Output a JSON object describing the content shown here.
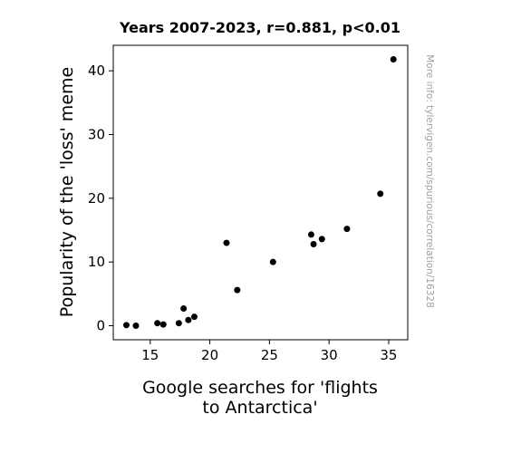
{
  "chart_data": {
    "type": "scatter",
    "title": "Years 2007-2023, r=0.881, p<0.01",
    "xlabel_lines": [
      "Google searches for 'flights",
      "to Antarctica'"
    ],
    "ylabel": "Popularity of the 'loss' meme",
    "watermark": "More info: tylervigen.com/spurious/correlation/16328",
    "xlim": [
      11.9,
      36.6
    ],
    "ylim": [
      -2.2,
      44.0
    ],
    "xticks": [
      15,
      20,
      25,
      30,
      35
    ],
    "yticks": [
      0,
      10,
      20,
      30,
      40
    ],
    "marker_color": "#000000",
    "points": [
      {
        "x": 13.0,
        "y": 0.1
      },
      {
        "x": 13.8,
        "y": 0.0
      },
      {
        "x": 15.6,
        "y": 0.4
      },
      {
        "x": 16.1,
        "y": 0.2
      },
      {
        "x": 17.4,
        "y": 0.4
      },
      {
        "x": 17.8,
        "y": 2.7
      },
      {
        "x": 18.2,
        "y": 0.9
      },
      {
        "x": 18.7,
        "y": 1.4
      },
      {
        "x": 21.4,
        "y": 13.0
      },
      {
        "x": 22.3,
        "y": 5.6
      },
      {
        "x": 25.3,
        "y": 10.0
      },
      {
        "x": 28.5,
        "y": 14.3
      },
      {
        "x": 28.7,
        "y": 12.8
      },
      {
        "x": 29.4,
        "y": 13.6
      },
      {
        "x": 31.5,
        "y": 15.2
      },
      {
        "x": 34.3,
        "y": 20.7
      },
      {
        "x": 35.4,
        "y": 41.8
      }
    ]
  }
}
